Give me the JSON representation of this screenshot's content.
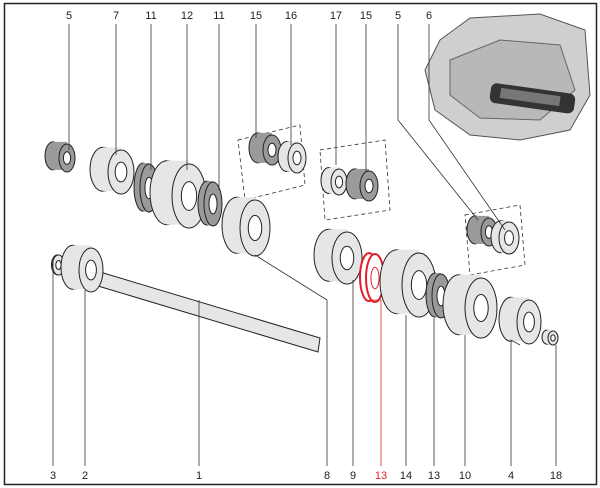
{
  "diagram": {
    "highlight_color": "#e0202a",
    "top_labels": [
      "5",
      "7",
      "11",
      "12",
      "11",
      "15",
      "16",
      "17",
      "15",
      "5",
      "6"
    ],
    "bottom_labels": [
      "3",
      "2",
      "1",
      "8",
      "9",
      "13",
      "14",
      "13",
      "10",
      "4",
      "18"
    ],
    "highlighted_bottom_index": 5
  }
}
